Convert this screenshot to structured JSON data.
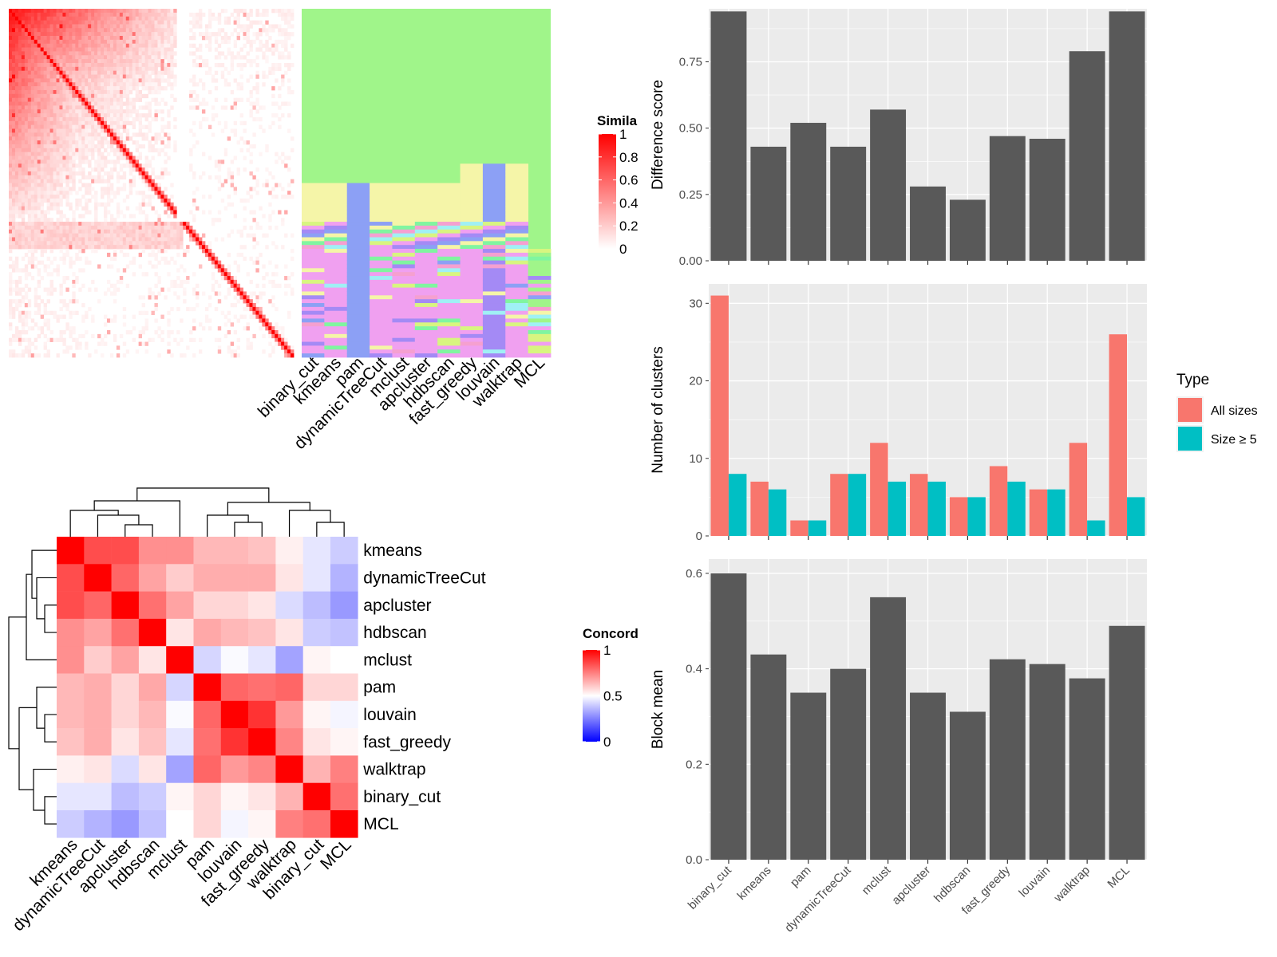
{
  "methods": [
    "binary_cut",
    "kmeans",
    "pam",
    "dynamicTreeCut",
    "mclust",
    "apcluster",
    "hdbscan",
    "fast_greedy",
    "louvain",
    "walktrap",
    "MCL"
  ],
  "similarity_legend": {
    "title": "Simila",
    "ticks": [
      "1",
      "0.8",
      "0.6",
      "0.4",
      "0.2",
      "0"
    ]
  },
  "concordance_legend": {
    "title": "Concord",
    "ticks": [
      "1",
      "0.5",
      "0"
    ]
  },
  "concordance_order": [
    "kmeans",
    "dynamicTreeCut",
    "apcluster",
    "hdbscan",
    "mclust",
    "pam",
    "louvain",
    "fast_greedy",
    "walktrap",
    "binary_cut",
    "MCL"
  ],
  "colors": {
    "bar_dark": "#595959",
    "all_sizes": "#F8766D",
    "size_ge5": "#00BFC4",
    "panel_bg": "#EBEBEB",
    "heat_high": "#FF0000",
    "heat_mid": "#FFFFFF",
    "heat_low": "#0000FF",
    "class_green": "#A0F58A"
  },
  "chart_data": [
    {
      "type": "heatmap",
      "title": "",
      "legend_title": "Simila",
      "scale": [
        0,
        1
      ],
      "note_rows": "similarity matrix with dense upper-left block and diagonal"
    },
    {
      "type": "heatmap",
      "legend_title": "Concord",
      "rows": [
        "kmeans",
        "dynamicTreeCut",
        "apcluster",
        "hdbscan",
        "mclust",
        "pam",
        "louvain",
        "fast_greedy",
        "walktrap",
        "binary_cut",
        "MCL"
      ],
      "cols": [
        "kmeans",
        "dynamicTreeCut",
        "apcluster",
        "hdbscan",
        "mclust",
        "pam",
        "louvain",
        "fast_greedy",
        "walktrap",
        "binary_cut",
        "MCL"
      ],
      "values": [
        [
          1.0,
          0.85,
          0.85,
          0.72,
          0.72,
          0.64,
          0.64,
          0.62,
          0.53,
          0.45,
          0.4
        ],
        [
          0.85,
          1.0,
          0.8,
          0.68,
          0.6,
          0.66,
          0.66,
          0.66,
          0.55,
          0.45,
          0.35
        ],
        [
          0.85,
          0.8,
          1.0,
          0.78,
          0.68,
          0.58,
          0.58,
          0.55,
          0.43,
          0.37,
          0.3
        ],
        [
          0.72,
          0.68,
          0.78,
          1.0,
          0.55,
          0.67,
          0.64,
          0.62,
          0.55,
          0.4,
          0.38
        ],
        [
          0.72,
          0.6,
          0.68,
          0.55,
          1.0,
          0.42,
          0.49,
          0.45,
          0.32,
          0.52,
          0.5
        ],
        [
          0.64,
          0.66,
          0.58,
          0.67,
          0.42,
          1.0,
          0.8,
          0.78,
          0.8,
          0.58,
          0.58
        ],
        [
          0.64,
          0.66,
          0.58,
          0.64,
          0.49,
          0.8,
          1.0,
          0.9,
          0.7,
          0.52,
          0.48
        ],
        [
          0.62,
          0.66,
          0.55,
          0.62,
          0.45,
          0.78,
          0.9,
          1.0,
          0.74,
          0.55,
          0.52
        ],
        [
          0.53,
          0.55,
          0.43,
          0.55,
          0.32,
          0.8,
          0.7,
          0.74,
          1.0,
          0.65,
          0.75
        ],
        [
          0.45,
          0.45,
          0.37,
          0.4,
          0.52,
          0.58,
          0.52,
          0.55,
          0.65,
          1.0,
          0.78
        ],
        [
          0.4,
          0.35,
          0.3,
          0.38,
          0.5,
          0.58,
          0.48,
          0.52,
          0.75,
          0.78,
          1.0
        ]
      ]
    },
    {
      "type": "bar",
      "categories": [
        "binary_cut",
        "kmeans",
        "pam",
        "dynamicTreeCut",
        "mclust",
        "apcluster",
        "hdbscan",
        "fast_greedy",
        "louvain",
        "walktrap",
        "MCL"
      ],
      "values": [
        0.94,
        0.43,
        0.52,
        0.43,
        0.57,
        0.28,
        0.23,
        0.47,
        0.46,
        0.79,
        0.94
      ],
      "ylabel": "Difference score",
      "ylim": [
        0,
        0.95
      ],
      "yticks": [
        "0.00",
        "0.25",
        "0.50",
        "0.75"
      ],
      "grid": true
    },
    {
      "type": "bar",
      "categories": [
        "binary_cut",
        "kmeans",
        "pam",
        "dynamicTreeCut",
        "mclust",
        "apcluster",
        "hdbscan",
        "fast_greedy",
        "louvain",
        "walktrap",
        "MCL"
      ],
      "series": [
        {
          "name": "All sizes",
          "values": [
            31,
            7,
            2,
            8,
            12,
            8,
            5,
            9,
            6,
            12,
            26
          ]
        },
        {
          "name": "Size ≥ 5",
          "values": [
            8,
            6,
            2,
            8,
            7,
            7,
            5,
            7,
            6,
            2,
            5
          ]
        }
      ],
      "ylabel": "Number of clusters",
      "ylim": [
        0,
        32.5
      ],
      "yticks": [
        "0",
        "10",
        "20",
        "30"
      ],
      "legend_title": "Type",
      "legend_position": "right",
      "grid": true
    },
    {
      "type": "bar",
      "categories": [
        "binary_cut",
        "kmeans",
        "pam",
        "dynamicTreeCut",
        "mclust",
        "apcluster",
        "hdbscan",
        "fast_greedy",
        "louvain",
        "walktrap",
        "MCL"
      ],
      "values": [
        0.6,
        0.43,
        0.35,
        0.4,
        0.55,
        0.35,
        0.31,
        0.42,
        0.41,
        0.38,
        0.49
      ],
      "ylabel": "Block mean",
      "ylim": [
        0,
        0.63
      ],
      "yticks": [
        "0.0",
        "0.2",
        "0.4",
        "0.6"
      ],
      "grid": true
    }
  ]
}
